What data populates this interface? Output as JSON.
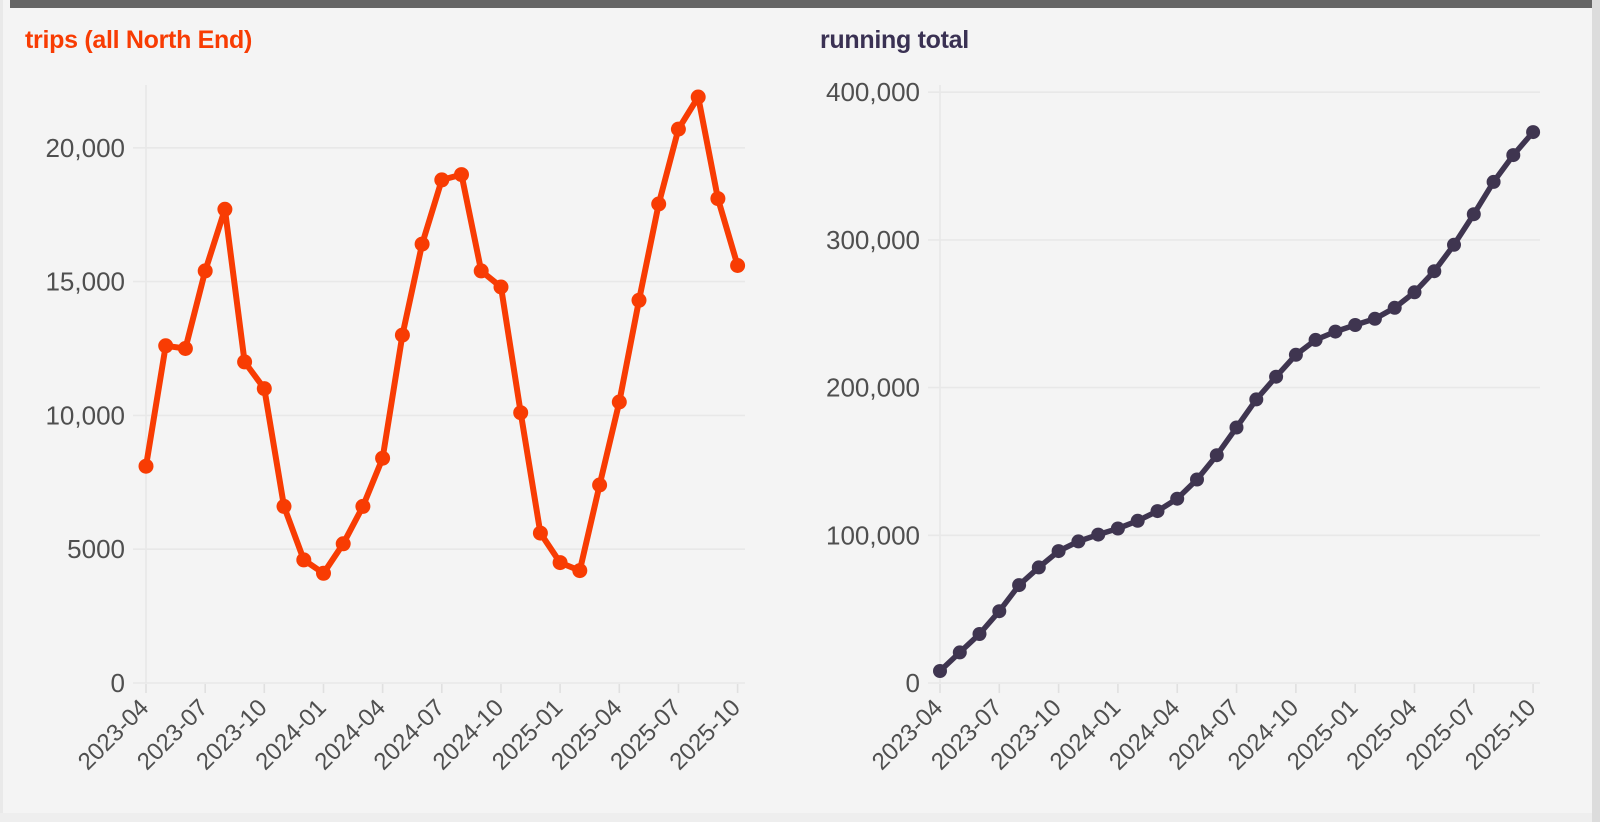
{
  "page": {
    "background": "#f4f4f4",
    "top_bar_color": "#656565",
    "scrollbar_color": "#dcdcdc",
    "grid_color": "#e8e8e8",
    "tick_color": "#e0e0e0",
    "axis_label_color": "#4f4f4f"
  },
  "chart_data": [
    {
      "type": "line",
      "title": "trips (all North End)",
      "title_color": "#f83c03",
      "line_color": "#f83c03",
      "legend_position": "none",
      "grid": "horizontal-and-first-vertical",
      "x": [
        "2023-04",
        "2023-05",
        "2023-06",
        "2023-07",
        "2023-08",
        "2023-09",
        "2023-10",
        "2023-11",
        "2023-12",
        "2024-01",
        "2024-02",
        "2024-03",
        "2024-04",
        "2024-05",
        "2024-06",
        "2024-07",
        "2024-08",
        "2024-09",
        "2024-10",
        "2024-11",
        "2024-12",
        "2025-01",
        "2025-02",
        "2025-03",
        "2025-04",
        "2025-05",
        "2025-06",
        "2025-07",
        "2025-08",
        "2025-09",
        "2025-10"
      ],
      "values": [
        8100,
        12600,
        12500,
        15400,
        17700,
        12000,
        11000,
        6600,
        4600,
        4100,
        5200,
        6600,
        8400,
        13000,
        16400,
        18800,
        19000,
        15400,
        14800,
        10100,
        5600,
        4500,
        4200,
        7400,
        10500,
        14300,
        17900,
        20700,
        21900,
        18100,
        15600
      ],
      "x_tick_labels": [
        "2023-04",
        "2023-07",
        "2023-10",
        "2024-01",
        "2024-04",
        "2024-07",
        "2024-10",
        "2025-01",
        "2025-04",
        "2025-07",
        "2025-10"
      ],
      "x_tick_every": 3,
      "y_ticks": [
        {
          "value": 0,
          "label": "0"
        },
        {
          "value": 5000,
          "label": "5000"
        },
        {
          "value": 10000,
          "label": "10,000"
        },
        {
          "value": 15000,
          "label": "15,000"
        },
        {
          "value": 20000,
          "label": "20,000"
        }
      ],
      "ylim": [
        0,
        22400
      ]
    },
    {
      "type": "line",
      "title": "running total",
      "title_color": "#3a3153",
      "line_color": "#3f3550",
      "legend_position": "none",
      "grid": "horizontal-and-first-vertical",
      "x": [
        "2023-04",
        "2023-05",
        "2023-06",
        "2023-07",
        "2023-08",
        "2023-09",
        "2023-10",
        "2023-11",
        "2023-12",
        "2024-01",
        "2024-02",
        "2024-03",
        "2024-04",
        "2024-05",
        "2024-06",
        "2024-07",
        "2024-08",
        "2024-09",
        "2024-10",
        "2024-11",
        "2024-12",
        "2025-01",
        "2025-02",
        "2025-03",
        "2025-04",
        "2025-05",
        "2025-06",
        "2025-07",
        "2025-08",
        "2025-09",
        "2025-10"
      ],
      "values": [
        8100,
        20700,
        33200,
        48600,
        66300,
        78300,
        89300,
        95900,
        100500,
        104600,
        109800,
        116400,
        124800,
        137800,
        154200,
        173000,
        192000,
        207400,
        222200,
        232300,
        237900,
        242400,
        246600,
        254000,
        264500,
        278800,
        296700,
        317400,
        339300,
        357400,
        373000
      ],
      "x_tick_labels": [
        "2023-04",
        "2023-07",
        "2023-10",
        "2024-01",
        "2024-04",
        "2024-07",
        "2024-10",
        "2025-01",
        "2025-04",
        "2025-07",
        "2025-10"
      ],
      "x_tick_every": 3,
      "y_ticks": [
        {
          "value": 0,
          "label": "0"
        },
        {
          "value": 100000,
          "label": "100,000"
        },
        {
          "value": 200000,
          "label": "200,000"
        },
        {
          "value": 300000,
          "label": "300,000"
        },
        {
          "value": 400000,
          "label": "400,000"
        }
      ],
      "ylim": [
        0,
        400000
      ]
    }
  ]
}
